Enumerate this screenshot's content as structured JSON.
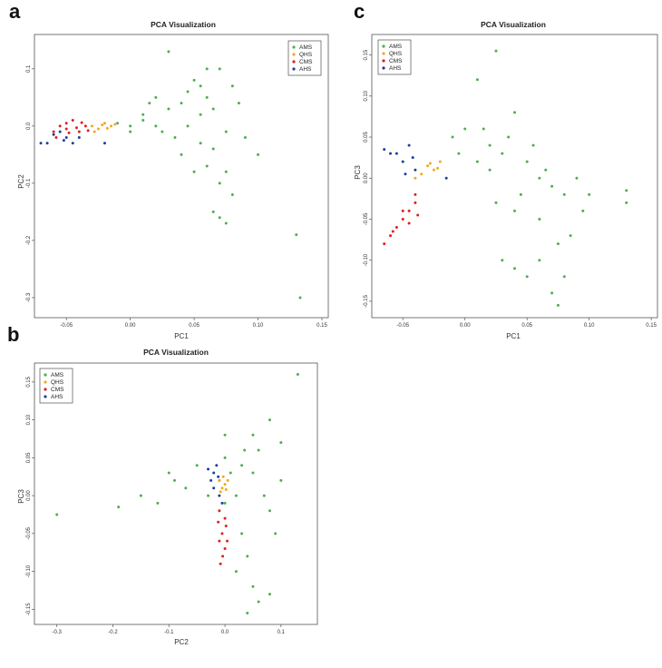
{
  "panels": [
    {
      "letter": "a",
      "title": "PCA Visualization",
      "xlabel": "PC1",
      "ylabel": "PC2",
      "xticks": [
        "-0.05",
        "0.00",
        "0.05",
        "0.10",
        "0.15"
      ],
      "yticks": [
        "0.1",
        "0.0",
        "-0.1",
        "-0.2",
        "-0.3"
      ]
    },
    {
      "letter": "b",
      "title": "PCA Visualization",
      "xlabel": "PC2",
      "ylabel": "PC3",
      "xticks": [
        "-0.3",
        "-0.2",
        "-0.1",
        "0.0",
        "0.1"
      ],
      "yticks": [
        "0.15",
        "0.10",
        "0.05",
        "0.00",
        "-0.05",
        "-0.10",
        "-0.15"
      ]
    },
    {
      "letter": "c",
      "title": "PCA Visualization",
      "xlabel": "PC1",
      "ylabel": "PC3",
      "xticks": [
        "-0.05",
        "0.00",
        "0.05",
        "0.10",
        "0.15"
      ],
      "yticks": [
        "0.15",
        "0.10",
        "0.05",
        "0.00",
        "-0.05",
        "-0.10",
        "-0.15"
      ]
    }
  ],
  "legend": [
    {
      "label": "AMS",
      "color": "#4caf50"
    },
    {
      "label": "QHS",
      "color": "#f5a623"
    },
    {
      "label": "CMS",
      "color": "#e02020"
    },
    {
      "label": "AHS",
      "color": "#1f3f9e"
    }
  ],
  "chart_data": [
    {
      "type": "scatter",
      "title": "PCA Visualization",
      "xlabel": "PC1",
      "ylabel": "PC2",
      "xlim": [
        -0.075,
        0.155
      ],
      "ylim": [
        -0.335,
        0.16
      ],
      "series": [
        {
          "name": "AMS",
          "points": [
            [
              0.03,
              0.13
            ],
            [
              0.06,
              0.1
            ],
            [
              0.07,
              0.1
            ],
            [
              0.08,
              0.07
            ],
            [
              0.05,
              0.08
            ],
            [
              0.04,
              0.04
            ],
            [
              0.02,
              0.05
            ],
            [
              0.06,
              0.05
            ],
            [
              0.01,
              0.02
            ],
            [
              0.03,
              0.03
            ],
            [
              0.045,
              0.0
            ],
            [
              0.055,
              0.02
            ],
            [
              0.065,
              0.03
            ],
            [
              0.075,
              -0.01
            ],
            [
              0.04,
              -0.05
            ],
            [
              0.05,
              -0.08
            ],
            [
              0.06,
              -0.07
            ],
            [
              0.07,
              -0.1
            ],
            [
              0.08,
              -0.12
            ],
            [
              0.065,
              -0.15
            ],
            [
              0.07,
              -0.16
            ],
            [
              0.075,
              -0.17
            ],
            [
              0.1,
              -0.05
            ],
            [
              0.13,
              -0.19
            ],
            [
              0.133,
              -0.3
            ],
            [
              0.02,
              0.0
            ],
            [
              0.01,
              0.01
            ],
            [
              0.0,
              0.0
            ],
            [
              -0.01,
              0.005
            ],
            [
              0.0,
              -0.01
            ],
            [
              0.025,
              -0.01
            ],
            [
              0.035,
              -0.02
            ],
            [
              0.045,
              0.06
            ],
            [
              0.055,
              0.07
            ],
            [
              0.085,
              0.04
            ],
            [
              0.09,
              -0.02
            ],
            [
              0.015,
              0.04
            ],
            [
              0.065,
              -0.04
            ],
            [
              0.055,
              -0.03
            ],
            [
              0.075,
              -0.08
            ]
          ]
        },
        {
          "name": "QHS",
          "points": [
            [
              -0.03,
              0.0
            ],
            [
              -0.025,
              -0.005
            ],
            [
              -0.02,
              0.005
            ],
            [
              -0.015,
              0.0
            ],
            [
              -0.028,
              -0.01
            ],
            [
              -0.022,
              0.002
            ],
            [
              -0.018,
              -0.004
            ],
            [
              -0.012,
              0.003
            ]
          ]
        },
        {
          "name": "CMS",
          "points": [
            [
              -0.06,
              -0.01
            ],
            [
              -0.055,
              0.0
            ],
            [
              -0.05,
              -0.005
            ],
            [
              -0.045,
              0.01
            ],
            [
              -0.04,
              -0.01
            ],
            [
              -0.035,
              0.0
            ],
            [
              -0.05,
              0.005
            ],
            [
              -0.042,
              -0.003
            ],
            [
              -0.048,
              -0.012
            ],
            [
              -0.038,
              0.006
            ],
            [
              -0.058,
              -0.02
            ],
            [
              -0.033,
              -0.008
            ]
          ]
        },
        {
          "name": "AHS",
          "points": [
            [
              -0.07,
              -0.03
            ],
            [
              -0.065,
              -0.03
            ],
            [
              -0.05,
              -0.02
            ],
            [
              -0.045,
              -0.03
            ],
            [
              -0.055,
              -0.01
            ],
            [
              -0.04,
              -0.02
            ],
            [
              -0.06,
              -0.015
            ],
            [
              -0.052,
              -0.025
            ],
            [
              -0.02,
              -0.03
            ]
          ]
        }
      ]
    },
    {
      "type": "scatter",
      "title": "PCA Visualization",
      "xlabel": "PC2",
      "ylabel": "PC3",
      "xlim": [
        -0.34,
        0.165
      ],
      "ylim": [
        -0.17,
        0.175
      ],
      "series": [
        {
          "name": "AMS",
          "points": [
            [
              0.13,
              0.16
            ],
            [
              0.1,
              0.07
            ],
            [
              0.08,
              0.1
            ],
            [
              0.05,
              0.08
            ],
            [
              0.0,
              0.08
            ],
            [
              -0.05,
              0.04
            ],
            [
              -0.1,
              0.03
            ],
            [
              -0.15,
              0.0
            ],
            [
              -0.19,
              -0.015
            ],
            [
              -0.3,
              -0.025
            ],
            [
              -0.12,
              -0.01
            ],
            [
              0.05,
              0.03
            ],
            [
              0.07,
              0.0
            ],
            [
              0.08,
              -0.02
            ],
            [
              0.03,
              -0.05
            ],
            [
              0.04,
              -0.08
            ],
            [
              0.05,
              -0.12
            ],
            [
              0.06,
              -0.14
            ],
            [
              0.04,
              -0.155
            ],
            [
              0.08,
              -0.13
            ],
            [
              0.0,
              0.05
            ],
            [
              0.01,
              0.03
            ],
            [
              -0.01,
              0.02
            ],
            [
              0.02,
              0.0
            ],
            [
              0.0,
              -0.01
            ],
            [
              0.03,
              0.04
            ],
            [
              -0.07,
              0.01
            ],
            [
              -0.09,
              0.02
            ],
            [
              0.06,
              0.06
            ],
            [
              0.09,
              -0.05
            ],
            [
              0.02,
              -0.1
            ],
            [
              -0.03,
              0.0
            ],
            [
              0.1,
              0.02
            ],
            [
              0.035,
              0.06
            ]
          ]
        },
        {
          "name": "QHS",
          "points": [
            [
              -0.01,
              0.02
            ],
            [
              0.0,
              0.015
            ],
            [
              -0.005,
              0.01
            ],
            [
              0.005,
              0.02
            ],
            [
              -0.008,
              0.005
            ],
            [
              0.002,
              0.008
            ],
            [
              -0.003,
              0.025
            ]
          ]
        },
        {
          "name": "CMS",
          "points": [
            [
              -0.01,
              -0.02
            ],
            [
              0.0,
              -0.03
            ],
            [
              -0.005,
              -0.05
            ],
            [
              -0.01,
              -0.06
            ],
            [
              0.0,
              -0.07
            ],
            [
              -0.008,
              -0.09
            ],
            [
              0.002,
              -0.04
            ],
            [
              -0.004,
              -0.08
            ],
            [
              0.004,
              -0.06
            ],
            [
              -0.012,
              -0.035
            ]
          ]
        },
        {
          "name": "AHS",
          "points": [
            [
              -0.03,
              0.035
            ],
            [
              -0.02,
              0.03
            ],
            [
              -0.025,
              0.02
            ],
            [
              -0.015,
              0.04
            ],
            [
              -0.01,
              0.0
            ],
            [
              -0.02,
              0.01
            ],
            [
              -0.005,
              -0.01
            ],
            [
              -0.012,
              0.025
            ]
          ]
        }
      ]
    },
    {
      "type": "scatter",
      "title": "PCA Visualization",
      "xlabel": "PC1",
      "ylabel": "PC3",
      "xlim": [
        -0.075,
        0.155
      ],
      "ylim": [
        -0.17,
        0.175
      ],
      "series": [
        {
          "name": "AMS",
          "points": [
            [
              0.025,
              0.155
            ],
            [
              0.01,
              0.12
            ],
            [
              0.04,
              0.08
            ],
            [
              0.0,
              0.06
            ],
            [
              -0.01,
              0.05
            ],
            [
              0.02,
              0.04
            ],
            [
              0.03,
              0.03
            ],
            [
              0.05,
              0.02
            ],
            [
              0.06,
              0.0
            ],
            [
              0.07,
              -0.01
            ],
            [
              0.08,
              -0.02
            ],
            [
              0.09,
              0.0
            ],
            [
              0.1,
              -0.02
            ],
            [
              0.13,
              -0.03
            ],
            [
              0.13,
              -0.015
            ],
            [
              0.03,
              -0.1
            ],
            [
              0.04,
              -0.11
            ],
            [
              0.05,
              -0.12
            ],
            [
              0.06,
              -0.1
            ],
            [
              0.07,
              -0.14
            ],
            [
              0.075,
              -0.155
            ],
            [
              0.08,
              -0.12
            ],
            [
              0.085,
              -0.07
            ],
            [
              0.06,
              -0.05
            ],
            [
              0.04,
              -0.04
            ],
            [
              0.02,
              0.01
            ],
            [
              0.01,
              0.02
            ],
            [
              -0.005,
              0.03
            ],
            [
              0.015,
              0.06
            ],
            [
              0.035,
              0.05
            ],
            [
              0.055,
              0.04
            ],
            [
              0.045,
              -0.02
            ],
            [
              0.065,
              0.01
            ],
            [
              0.075,
              -0.08
            ],
            [
              0.025,
              -0.03
            ],
            [
              0.095,
              -0.04
            ]
          ]
        },
        {
          "name": "QHS",
          "points": [
            [
              -0.03,
              0.015
            ],
            [
              -0.025,
              0.01
            ],
            [
              -0.02,
              0.02
            ],
            [
              -0.035,
              0.005
            ],
            [
              -0.028,
              0.018
            ],
            [
              -0.022,
              0.012
            ],
            [
              -0.04,
              0.0
            ]
          ]
        },
        {
          "name": "CMS",
          "points": [
            [
              -0.04,
              -0.02
            ],
            [
              -0.045,
              -0.04
            ],
            [
              -0.05,
              -0.05
            ],
            [
              -0.055,
              -0.06
            ],
            [
              -0.06,
              -0.07
            ],
            [
              -0.065,
              -0.08
            ],
            [
              -0.04,
              -0.03
            ],
            [
              -0.05,
              -0.04
            ],
            [
              -0.045,
              -0.055
            ],
            [
              -0.038,
              -0.045
            ],
            [
              -0.058,
              -0.065
            ]
          ]
        },
        {
          "name": "AHS",
          "points": [
            [
              -0.065,
              0.035
            ],
            [
              -0.055,
              0.03
            ],
            [
              -0.05,
              0.02
            ],
            [
              -0.045,
              0.04
            ],
            [
              -0.04,
              0.01
            ],
            [
              -0.048,
              0.005
            ],
            [
              -0.06,
              0.03
            ],
            [
              -0.042,
              0.025
            ],
            [
              -0.015,
              0.0
            ]
          ]
        }
      ]
    }
  ]
}
